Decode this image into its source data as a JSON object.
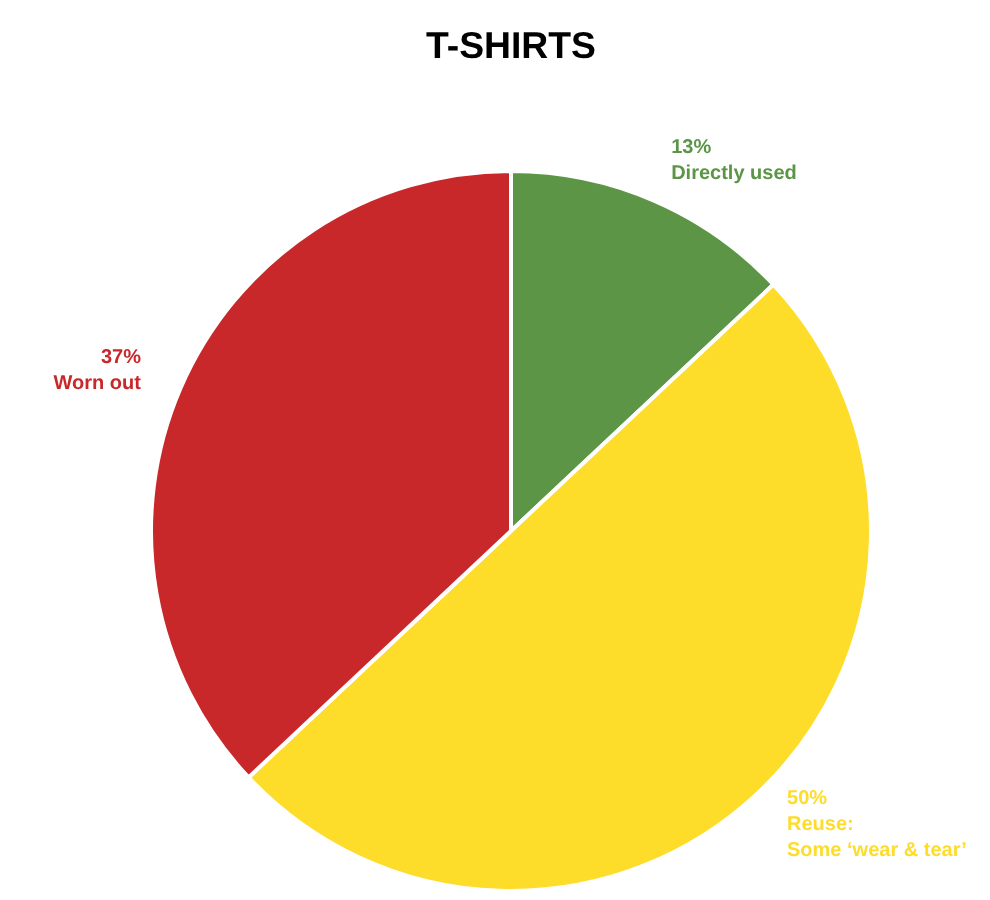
{
  "chart_data": {
    "type": "pie",
    "title": "T-SHIRTS",
    "categories": [
      "Directly used",
      "Reuse:\nSome ‘wear & tear’",
      "Worn out"
    ],
    "values": [
      13,
      50,
      37
    ],
    "value_labels": [
      "13%",
      "50%",
      "37%"
    ],
    "colors": [
      "#5b9545",
      "#fedc2a",
      "#c9282a"
    ]
  }
}
